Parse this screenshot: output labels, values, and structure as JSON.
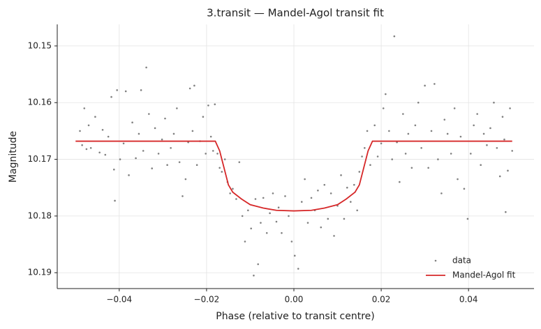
{
  "chart_data": {
    "type": "scatter",
    "title": "3.transit — Mandel-Agol transit fit",
    "xlabel": "Phase (relative to transit centre)",
    "ylabel": "Magnitude",
    "xlim": [
      -0.0542,
      0.055
    ],
    "ylim": [
      10.1928,
      10.1462
    ],
    "xticks": [
      {
        "value": -0.04,
        "label": "−0.04"
      },
      {
        "value": -0.02,
        "label": "−0.02"
      },
      {
        "value": 0,
        "label": "0.00"
      },
      {
        "value": 0.02,
        "label": "0.02"
      },
      {
        "value": 0.04,
        "label": "0.04"
      }
    ],
    "yticks": [
      10.15,
      10.16,
      10.17,
      10.18,
      10.19
    ],
    "grid": true,
    "legend": "lower right",
    "series": [
      {
        "name": "data",
        "type": "scatter",
        "color": "#808080",
        "x": [
          -0.049,
          -0.0485,
          -0.048,
          -0.0475,
          -0.047,
          -0.0465,
          -0.0455,
          -0.0445,
          -0.0438,
          -0.0432,
          -0.0425,
          -0.0418,
          -0.0412,
          -0.041,
          -0.0405,
          -0.0398,
          -0.039,
          -0.0385,
          -0.0378,
          -0.037,
          -0.0362,
          -0.0355,
          -0.035,
          -0.0345,
          -0.0338,
          -0.0332,
          -0.0325,
          -0.0318,
          -0.031,
          -0.0302,
          -0.0295,
          -0.029,
          -0.0282,
          -0.0275,
          -0.0268,
          -0.0262,
          -0.0255,
          -0.0248,
          -0.0242,
          -0.0238,
          -0.0232,
          -0.0228,
          -0.0222,
          -0.0215,
          -0.0208,
          -0.0202,
          -0.0196,
          -0.019,
          -0.0185,
          -0.0181,
          -0.0175,
          -0.017,
          -0.0165,
          -0.0158,
          -0.0152,
          -0.0146,
          -0.014,
          -0.0132,
          -0.0125,
          -0.0118,
          -0.0112,
          -0.0105,
          -0.0098,
          -0.0092,
          -0.0088,
          -0.0082,
          -0.0076,
          -0.007,
          -0.0062,
          -0.0055,
          -0.0048,
          -0.004,
          -0.0035,
          -0.0028,
          -0.002,
          -0.0012,
          -0.0005,
          0.0002,
          0.001,
          0.0018,
          0.0025,
          0.0032,
          0.004,
          0.0048,
          0.0055,
          0.0062,
          0.007,
          0.0078,
          0.0085,
          0.0092,
          0.01,
          0.0108,
          0.0115,
          0.0122,
          0.013,
          0.0138,
          0.0145,
          0.015,
          0.0156,
          0.0162,
          0.0168,
          0.0175,
          0.0185,
          0.0192,
          0.02,
          0.0205,
          0.021,
          0.0218,
          0.0225,
          0.023,
          0.0236,
          0.0242,
          0.025,
          0.0256,
          0.0262,
          0.027,
          0.0278,
          0.0285,
          0.0292,
          0.03,
          0.0308,
          0.0315,
          0.0322,
          0.033,
          0.0338,
          0.0345,
          0.0352,
          0.036,
          0.0368,
          0.0375,
          0.0382,
          0.039,
          0.0398,
          0.0405,
          0.0412,
          0.042,
          0.0428,
          0.0435,
          0.0442,
          0.045,
          0.0458,
          0.0465,
          0.0472,
          0.0478,
          0.0482,
          0.0485,
          0.049,
          0.0495,
          0.05
        ],
        "values": [
          10.165,
          10.1675,
          10.161,
          10.1682,
          10.164,
          10.168,
          10.1625,
          10.1688,
          10.1648,
          10.1692,
          10.166,
          10.159,
          10.1718,
          10.1773,
          10.1578,
          10.17,
          10.1672,
          10.158,
          10.1728,
          10.1635,
          10.1698,
          10.1655,
          10.1578,
          10.1685,
          10.1538,
          10.162,
          10.1716,
          10.1645,
          10.169,
          10.1665,
          10.1628,
          10.171,
          10.168,
          10.1655,
          10.161,
          10.1705,
          10.1765,
          10.1735,
          10.167,
          10.1575,
          10.165,
          10.157,
          10.171,
          10.1668,
          10.1625,
          10.169,
          10.1605,
          10.166,
          10.1685,
          10.1603,
          10.169,
          10.1715,
          10.1722,
          10.17,
          10.174,
          10.176,
          10.1752,
          10.177,
          10.1705,
          10.18,
          10.1845,
          10.179,
          10.1822,
          10.1905,
          10.177,
          10.1885,
          10.1812,
          10.1768,
          10.183,
          10.1795,
          10.176,
          10.181,
          10.1785,
          10.183,
          10.1765,
          10.18,
          10.1845,
          10.187,
          10.1893,
          10.1775,
          10.1735,
          10.1812,
          10.1768,
          10.179,
          10.1755,
          10.182,
          10.1745,
          10.1805,
          10.176,
          10.1835,
          10.1782,
          10.1728,
          10.1805,
          10.175,
          10.1775,
          10.1745,
          10.179,
          10.1722,
          10.1695,
          10.168,
          10.165,
          10.171,
          10.164,
          10.1695,
          10.1672,
          10.161,
          10.1585,
          10.165,
          10.17,
          10.1483,
          10.167,
          10.174,
          10.162,
          10.169,
          10.1655,
          10.1715,
          10.164,
          10.16,
          10.168,
          10.157,
          10.1715,
          10.165,
          10.1567,
          10.17,
          10.176,
          10.163,
          10.1655,
          10.169,
          10.161,
          10.1735,
          10.166,
          10.1752,
          10.1805,
          10.169,
          10.164,
          10.162,
          10.171,
          10.1655,
          10.1675,
          10.1645,
          10.16,
          10.168,
          10.173,
          10.1625,
          10.1665,
          10.1793,
          10.172,
          10.161,
          10.1685
        ]
      },
      {
        "name": "Mandel-Agol fit",
        "type": "line",
        "color": "#d62728",
        "x": [
          -0.05,
          -0.018,
          -0.017,
          -0.016,
          -0.015,
          -0.014,
          -0.012,
          -0.01,
          -0.007,
          -0.004,
          0,
          0.004,
          0.007,
          0.01,
          0.012,
          0.014,
          0.015,
          0.016,
          0.017,
          0.018,
          0.05
        ],
        "values": [
          10.1668,
          10.1668,
          10.1685,
          10.1715,
          10.1745,
          10.1758,
          10.177,
          10.178,
          10.1786,
          10.179,
          10.1791,
          10.179,
          10.1786,
          10.178,
          10.177,
          10.1758,
          10.1745,
          10.1715,
          10.1685,
          10.1668,
          10.1668
        ]
      }
    ]
  }
}
